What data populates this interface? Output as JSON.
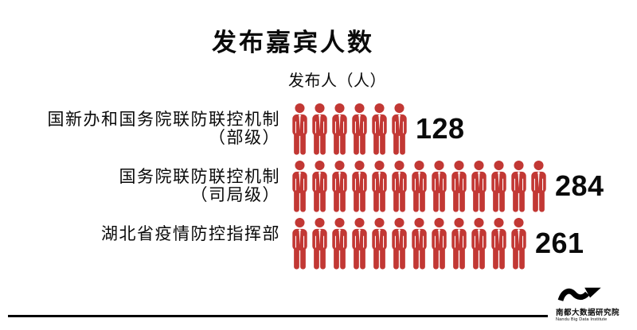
{
  "title": "发布嘉宾人数",
  "subtitle": "发布人（人）",
  "accent_color": "#C23834",
  "footer": {
    "logo_cn": "南都大数据研究院",
    "logo_en": "Nandu Big Data Institute"
  },
  "rows": [
    {
      "label_line1": "国新办和国务院联防联控机制",
      "label_line2": "（部级）",
      "value": "128",
      "icons": 6
    },
    {
      "label_line1": "国务院联防联控机制",
      "label_line2": "（司局级）",
      "value": "284",
      "icons": 13
    },
    {
      "label_line1": "湖北省疫情防控指挥部",
      "label_line2": "",
      "value": "261",
      "icons": 12
    }
  ],
  "chart_data": {
    "type": "bar",
    "subtype": "pictogram",
    "title": "发布嘉宾人数",
    "unit_label": "发布人（人）",
    "categories": [
      "国新办和国务院联防联控机制（部级）",
      "国务院联防联控机制（司局级）",
      "湖北省疫情防控指挥部"
    ],
    "values": [
      128,
      284,
      261
    ],
    "icon_counts": [
      6,
      13,
      12
    ],
    "icon": "person-icon",
    "icon_color": "#C23834",
    "value_color": "#000000",
    "legend_position": "none",
    "grid": false
  }
}
